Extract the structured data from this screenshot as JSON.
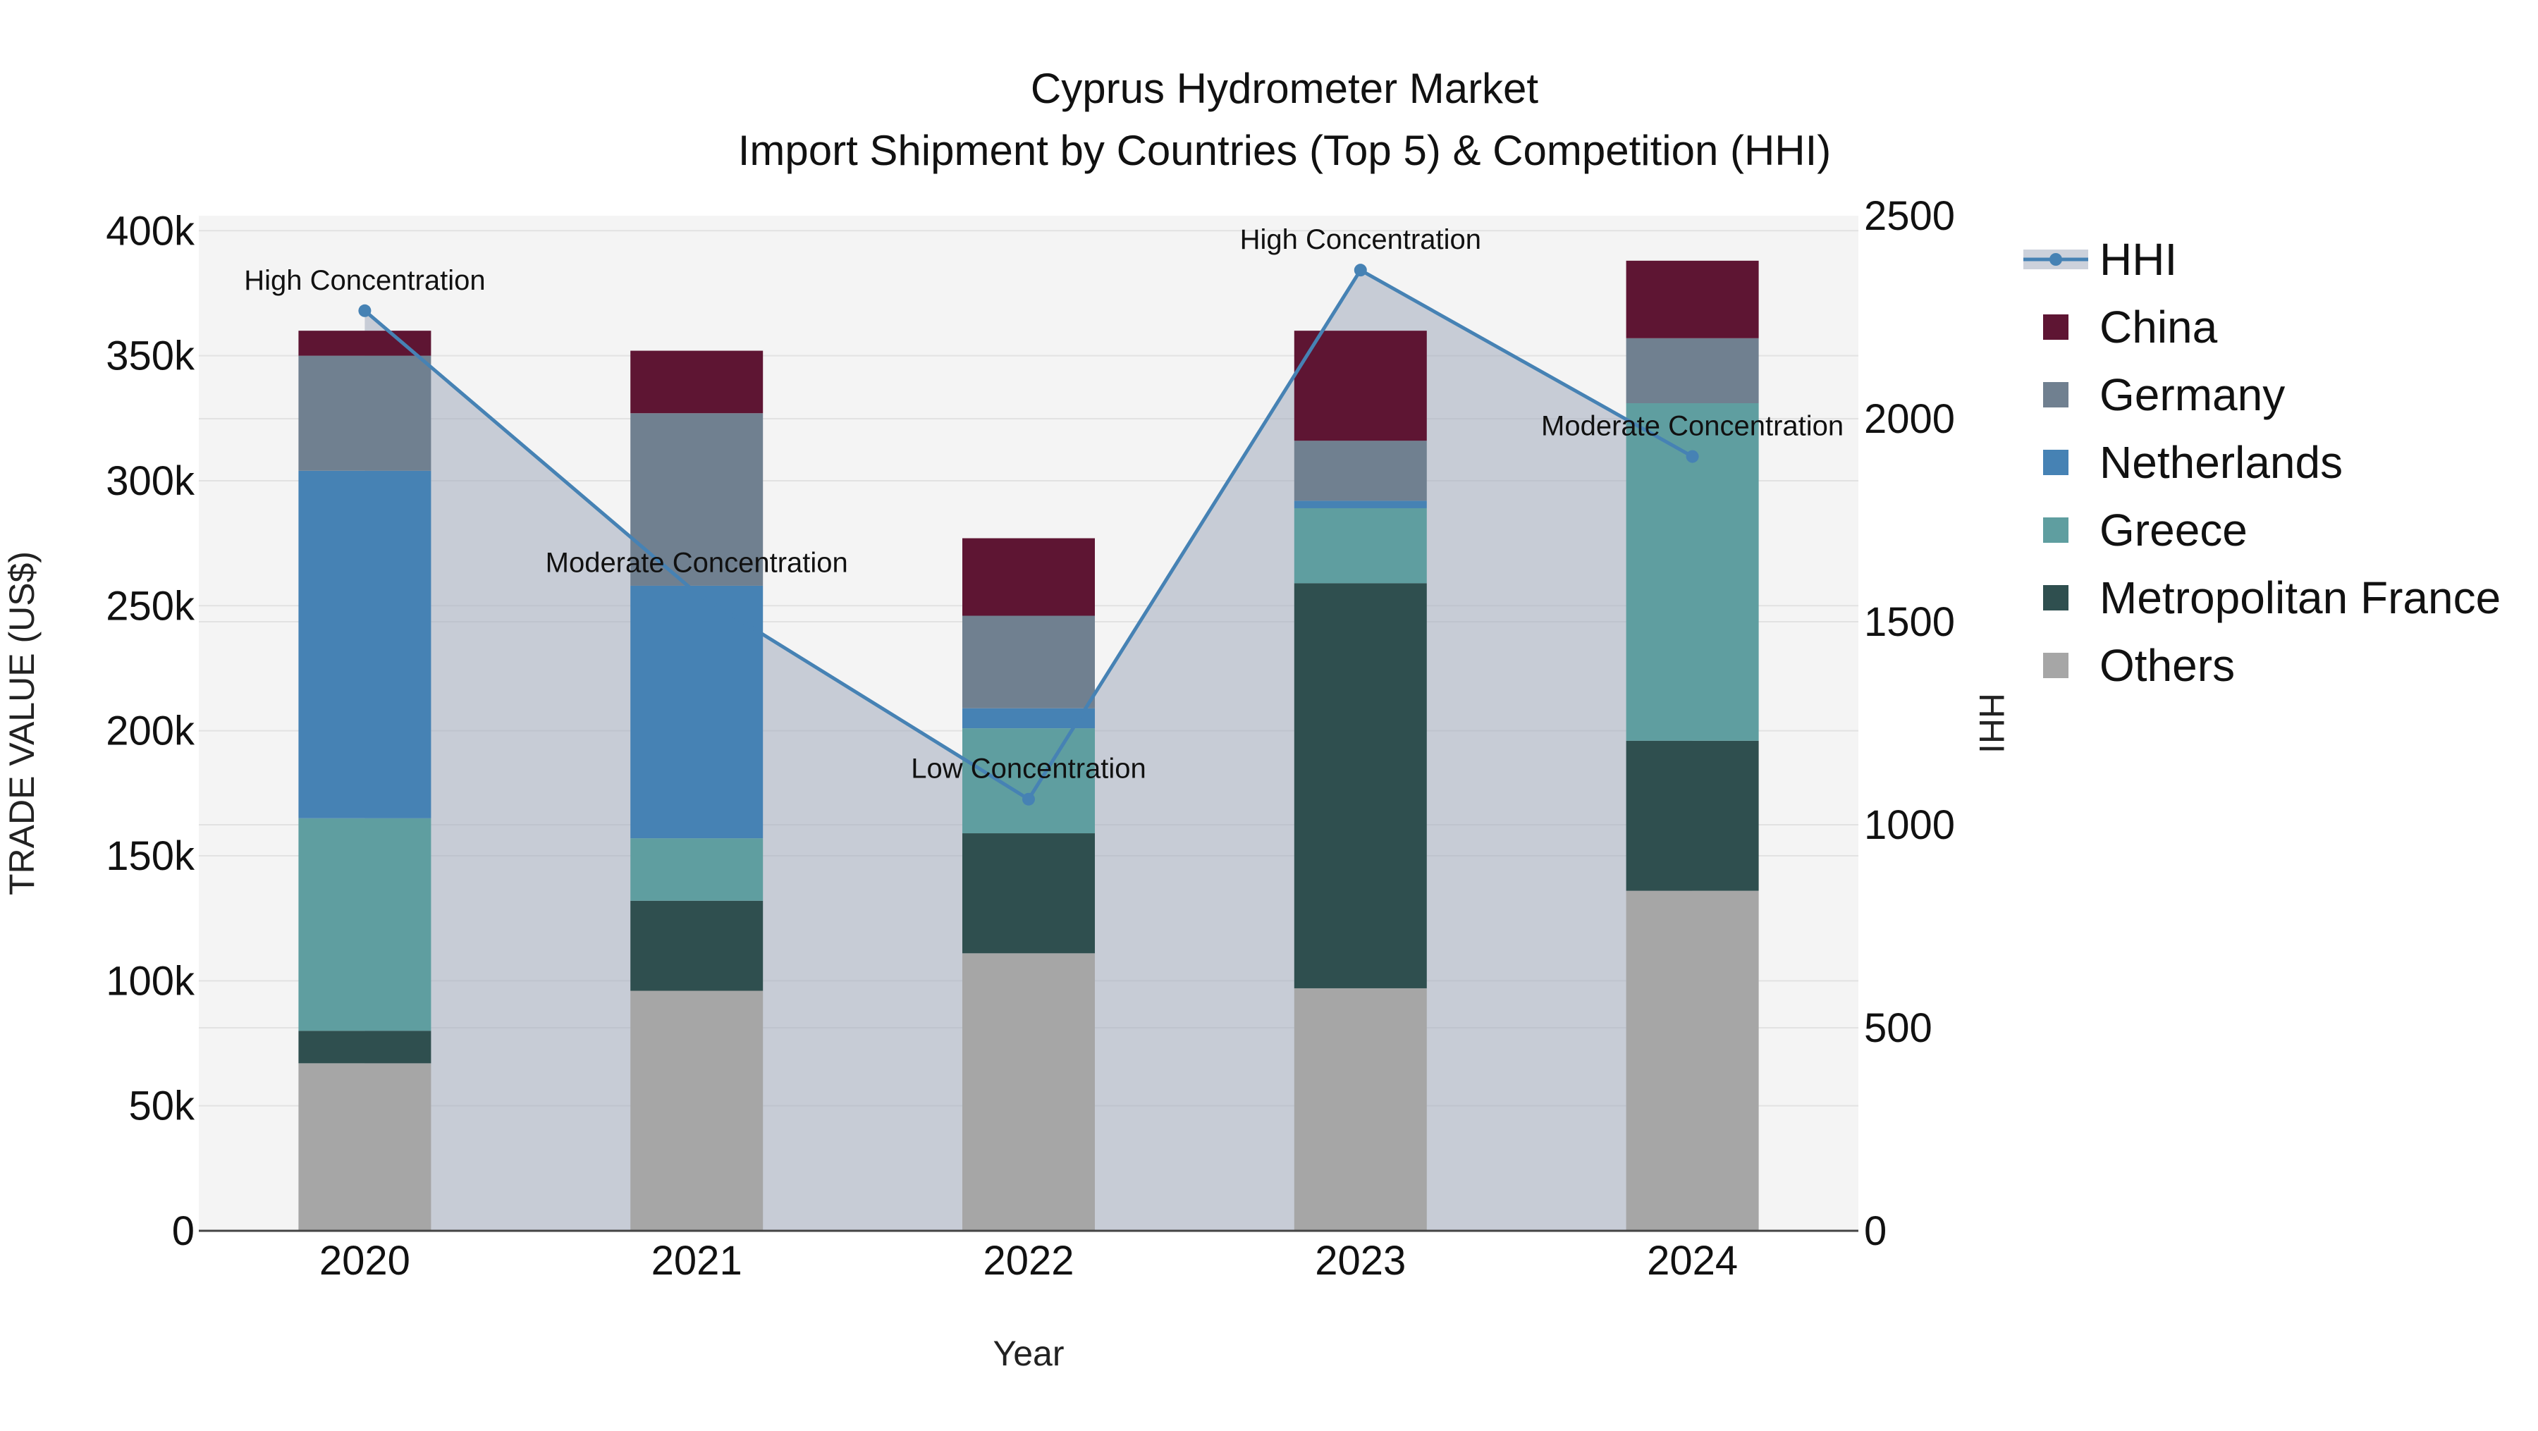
{
  "chart_data": {
    "type": "bar",
    "title": "Cyprus Hydrometer Market",
    "subtitle": "Import Shipment by Countries (Top 5) & Competition (HHI)",
    "xlabel": "Year",
    "ylabel": "TRADE VALUE (US$)",
    "y2label": "HHI",
    "categories": [
      "2020",
      "2021",
      "2022",
      "2023",
      "2024"
    ],
    "ylim": [
      0,
      406000
    ],
    "y2lim": [
      0,
      2500
    ],
    "yticks": [
      0,
      50000,
      100000,
      150000,
      200000,
      250000,
      300000,
      350000,
      400000
    ],
    "ytick_labels": [
      "0",
      "50k",
      "100k",
      "150k",
      "200k",
      "250k",
      "300k",
      "350k",
      "400k"
    ],
    "y2ticks": [
      0,
      500,
      1000,
      1500,
      2000,
      2500
    ],
    "y2tick_labels": [
      "0",
      "500",
      "1000",
      "1500",
      "2000",
      "2500"
    ],
    "series": [
      {
        "name": "Others",
        "color": "#a6a6a6",
        "values": [
          67000,
          96000,
          111000,
          97000,
          136000
        ]
      },
      {
        "name": "Metropolitan France",
        "color": "#2f4f4f",
        "values": [
          13000,
          36000,
          48000,
          162000,
          60000
        ]
      },
      {
        "name": "Greece",
        "color": "#5f9ea0",
        "values": [
          85000,
          25000,
          42000,
          30000,
          135000
        ]
      },
      {
        "name": "Netherlands",
        "color": "#4682b4",
        "values": [
          139000,
          101000,
          8000,
          3000,
          0
        ]
      },
      {
        "name": "Germany",
        "color": "#708090",
        "values": [
          46000,
          69000,
          37000,
          24000,
          26000
        ]
      },
      {
        "name": "China",
        "color": "#5e1533",
        "values": [
          10000,
          25000,
          31000,
          44000,
          31000
        ]
      }
    ],
    "hhi": {
      "name": "HHI",
      "color": "#4682b4",
      "values": [
        2266,
        1570,
        1063,
        2366,
        1907
      ],
      "annotations": [
        "High Concentration",
        "Moderate Concentration",
        "Low Concentration",
        "High Concentration",
        "Moderate Concentration"
      ]
    },
    "legend": {
      "placement": "right",
      "items": [
        "HHI",
        "China",
        "Germany",
        "Netherlands",
        "Greece",
        "Metropolitan France",
        "Others"
      ]
    }
  }
}
